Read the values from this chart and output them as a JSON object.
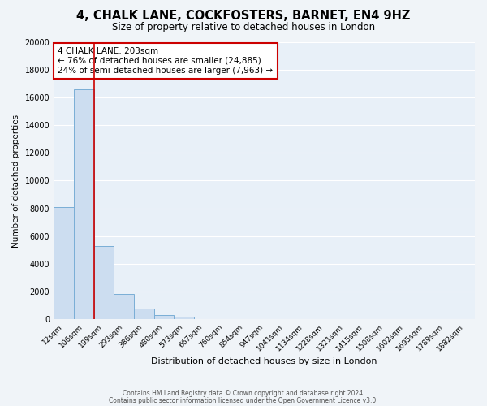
{
  "title": "4, CHALK LANE, COCKFOSTERS, BARNET, EN4 9HZ",
  "subtitle": "Size of property relative to detached houses in London",
  "xlabel": "Distribution of detached houses by size in London",
  "ylabel": "Number of detached properties",
  "bin_labels": [
    "12sqm",
    "106sqm",
    "199sqm",
    "293sqm",
    "386sqm",
    "480sqm",
    "573sqm",
    "667sqm",
    "760sqm",
    "854sqm",
    "947sqm",
    "1041sqm",
    "1134sqm",
    "1228sqm",
    "1321sqm",
    "1415sqm",
    "1508sqm",
    "1602sqm",
    "1695sqm",
    "1789sqm",
    "1882sqm"
  ],
  "bar_heights": [
    8100,
    16600,
    5300,
    1850,
    800,
    300,
    200,
    0,
    0,
    0,
    0,
    0,
    0,
    0,
    0,
    0,
    0,
    0,
    0,
    0,
    0
  ],
  "bar_color": "#ccddf0",
  "bar_edge_color": "#7aaed6",
  "annotation_title": "4 CHALK LANE: 203sqm",
  "annotation_line1": "← 76% of detached houses are smaller (24,885)",
  "annotation_line2": "24% of semi-detached houses are larger (7,963) →",
  "ylim": [
    0,
    20000
  ],
  "yticks": [
    0,
    2000,
    4000,
    6000,
    8000,
    10000,
    12000,
    14000,
    16000,
    18000,
    20000
  ],
  "footer1": "Contains HM Land Registry data © Crown copyright and database right 2024.",
  "footer2": "Contains public sector information licensed under the Open Government Licence v3.0.",
  "background_color": "#f0f4f8",
  "plot_bg_color": "#e8f0f8",
  "grid_color": "#ffffff",
  "title_fontsize": 10.5,
  "subtitle_fontsize": 8.5,
  "annotation_box_color": "#ffffff",
  "annotation_box_edge": "#cc0000",
  "red_line_color": "#cc0000"
}
